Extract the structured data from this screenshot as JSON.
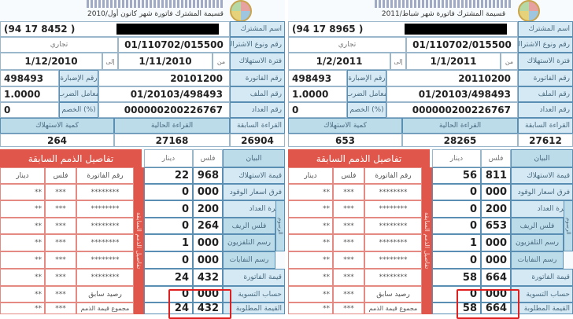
{
  "labels": {
    "subscriber_name": "اسم المشترك",
    "subscription": "رقم ونوع الاشتراك",
    "period": "فترة الاستهلاك",
    "invoice_no": "رقم الفاتورة",
    "file_no": "رقم الملف",
    "meter_no": "رقم العداد",
    "prev_reading": "القراءة السابقة",
    "dossier_no": "رقم الإضبارة",
    "multiplier": "معامل الضرب",
    "discount": "الخصم (%)",
    "curr_reading": "القراءة الحالية",
    "consumption": "كمية الاستهلاك",
    "from": "من",
    "to": "إلى",
    "statement": "البيان",
    "fils": "فلس",
    "dinar": "دينار",
    "fees_group": "الرسوم",
    "arrears_title": "تفاصيل الذمم السابقة",
    "arrears_invoice_no": "رقم الفاتورة",
    "prev_balance": "رصيد سابق",
    "arrears_total": "مجموع قيمة الذمم",
    "rows": [
      "قيمة الاستهلاك",
      "فرق اسعار الوقود",
      "اجرة العداد",
      "فلس الريف",
      "رسم التلفزيون",
      "رسم النفايات",
      "قيمة الفاتورة",
      "حساب التسوية",
      "القيمة المطلوبة"
    ]
  },
  "masked": {
    "invoice": "********",
    "fils": "***",
    "dinar": "**"
  },
  "colors": {
    "accent_blue": "#d4e9f4",
    "arrears_red": "#e0564a",
    "highlight": "#e02020"
  },
  "bills": [
    {
      "header": "قسيمة المشترك  فاتورة شهر كانون أول/2010",
      "phone": "(94 17 8452 )",
      "subscription_no": "01/110702/015500",
      "subscription_type": "تجاري",
      "period_from": "1/11/2010",
      "period_to": "1/12/2010",
      "invoice_no": "20101200",
      "dossier_no": "498493",
      "file_no": "01/20103/498493",
      "multiplier": "1.0000",
      "meter_no": "000000200226767",
      "discount": "0",
      "prev_reading": "26904",
      "curr_reading": "27168",
      "consumption": "264",
      "charges": [
        {
          "dinar": "22",
          "fils": "968"
        },
        {
          "dinar": "0",
          "fils": "000"
        },
        {
          "dinar": "0",
          "fils": "200"
        },
        {
          "dinar": "0",
          "fils": "264"
        },
        {
          "dinar": "1",
          "fils": "000"
        },
        {
          "dinar": "0",
          "fils": "000"
        },
        {
          "dinar": "24",
          "fils": "432"
        },
        {
          "dinar": "0",
          "fils": "000"
        },
        {
          "dinar": "24",
          "fils": "432"
        }
      ]
    },
    {
      "header": "قسيمة المشترك  فاتورة شهر شباط/2011",
      "phone": "(94 17 8965 )",
      "subscription_no": "01/110702/015500",
      "subscription_type": "تجاري",
      "period_from": "1/1/2011",
      "period_to": "1/2/2011",
      "invoice_no": "20110200",
      "dossier_no": "498493",
      "file_no": "01/20103/498493",
      "multiplier": "1.0000",
      "meter_no": "000000200226767",
      "discount": "0",
      "prev_reading": "27612",
      "curr_reading": "28265",
      "consumption": "653",
      "charges": [
        {
          "dinar": "56",
          "fils": "811"
        },
        {
          "dinar": "0",
          "fils": "000"
        },
        {
          "dinar": "0",
          "fils": "200"
        },
        {
          "dinar": "0",
          "fils": "653"
        },
        {
          "dinar": "1",
          "fils": "000"
        },
        {
          "dinar": "0",
          "fils": "000"
        },
        {
          "dinar": "58",
          "fils": "664"
        },
        {
          "dinar": "0",
          "fils": "000"
        },
        {
          "dinar": "58",
          "fils": "664"
        }
      ]
    }
  ]
}
